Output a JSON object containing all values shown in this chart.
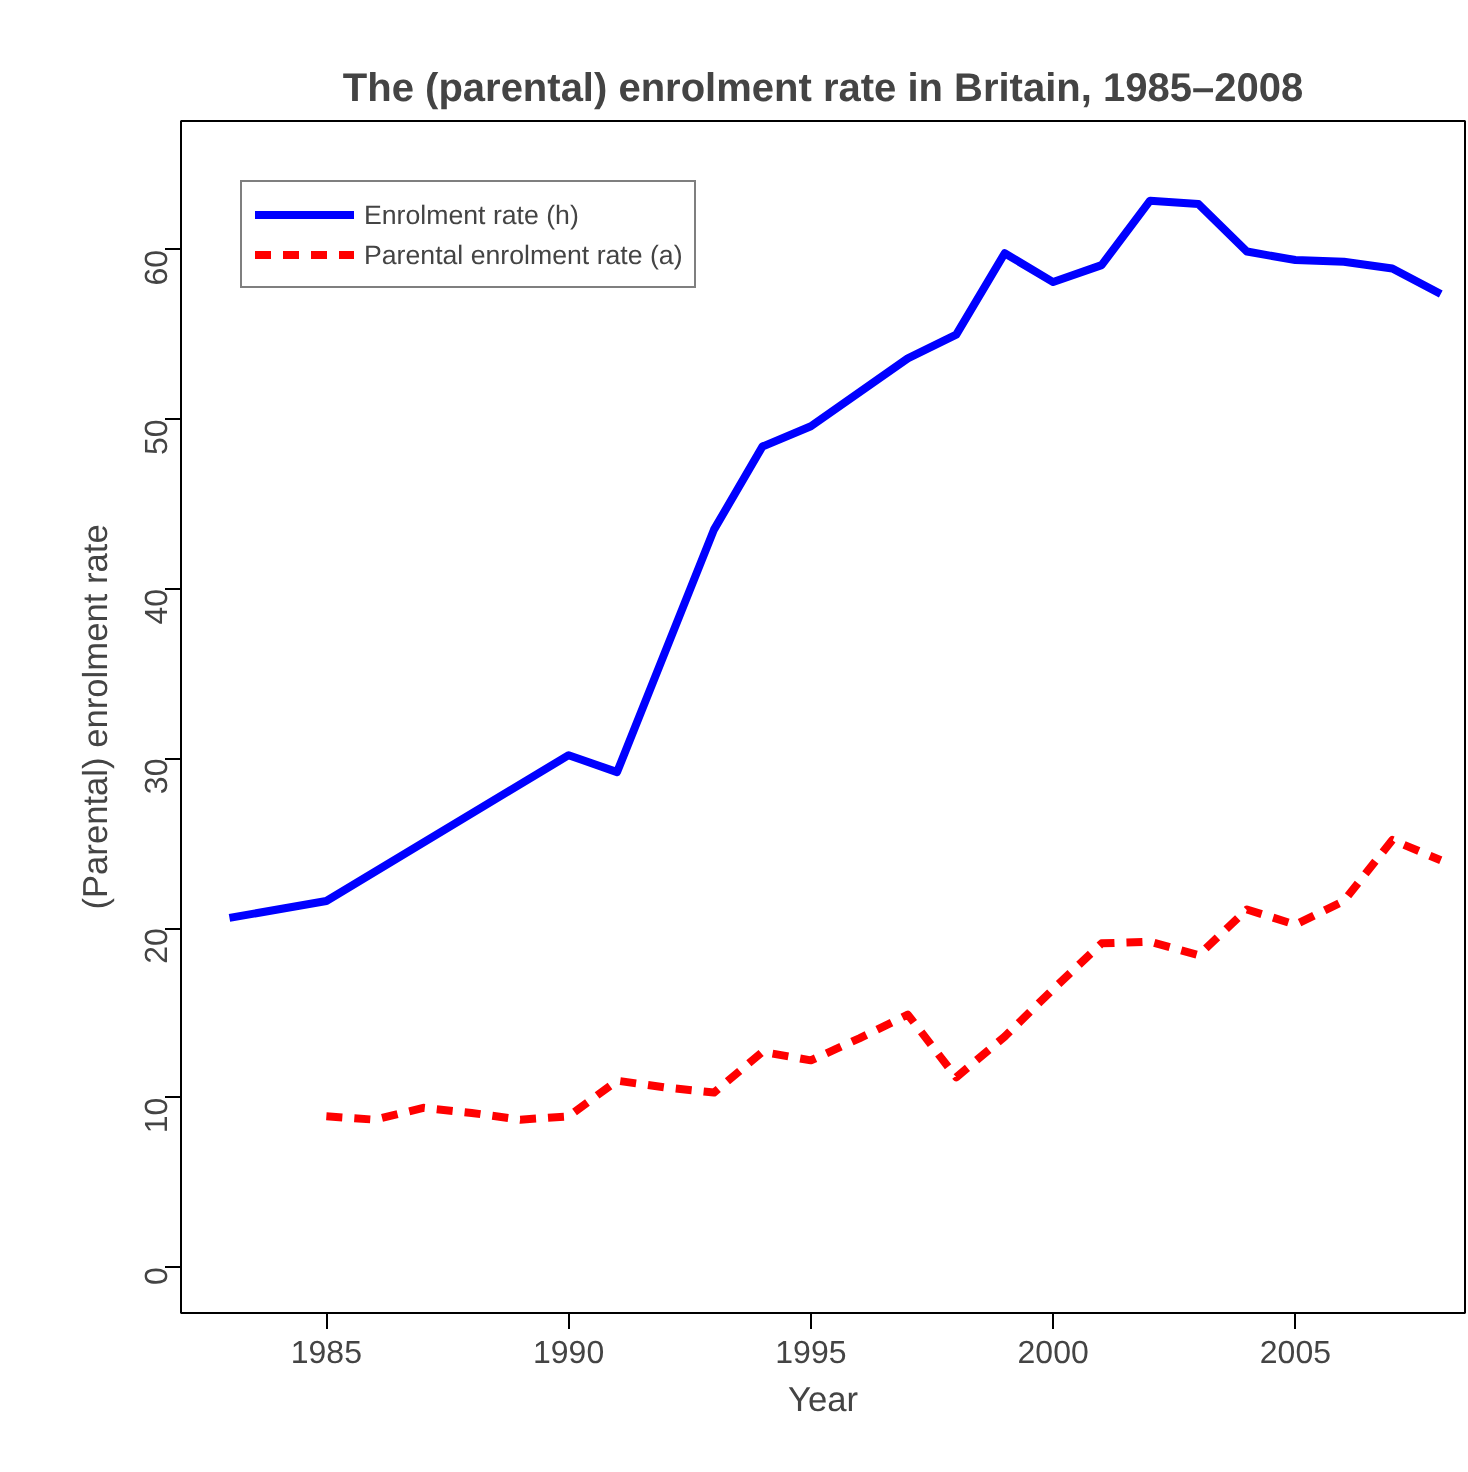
{
  "chart_data": {
    "type": "line",
    "title": "The (parental) enrolment rate in Britain, 1985–2008",
    "xlabel": "Year",
    "ylabel": "(Parental) enrolment rate",
    "xlim": [
      1982,
      2008.5
    ],
    "ylim": [
      -2.7,
      67.6
    ],
    "xticks": [
      1985,
      1990,
      1995,
      2000,
      2005
    ],
    "yticks": [
      0,
      10,
      20,
      30,
      40,
      50,
      60
    ],
    "grid": false,
    "legend": "top left",
    "series": [
      {
        "name": "Enrolment rate (h)",
        "color": "#0000ff",
        "line_style": "solid",
        "x": [
          1983,
          1985,
          1990,
          1991,
          1993,
          1994,
          1995,
          1997,
          1998,
          1999,
          2000,
          2001,
          2002,
          2003,
          2004,
          2005,
          2006,
          2007,
          2008
        ],
        "values": [
          20.6,
          21.6,
          30.2,
          29.2,
          43.5,
          48.4,
          49.6,
          53.6,
          55.0,
          59.8,
          58.1,
          59.1,
          62.9,
          62.7,
          59.9,
          59.4,
          59.3,
          58.9,
          57.4
        ]
      },
      {
        "name": "Parental enrolment rate (a)",
        "color": "#ff0000",
        "line_style": "dashed",
        "x": [
          1985,
          1986,
          1987,
          1988,
          1989,
          1990,
          1991,
          1992,
          1993,
          1994,
          1995,
          1996,
          1997,
          1998,
          1999,
          2000,
          2001,
          2002,
          2003,
          2004,
          2005,
          2006,
          2007,
          2008
        ],
        "values": [
          8.9,
          8.7,
          9.4,
          9.1,
          8.7,
          8.9,
          11.0,
          10.6,
          10.3,
          12.7,
          12.2,
          13.5,
          14.9,
          11.2,
          13.6,
          16.4,
          19.1,
          19.2,
          18.4,
          21.1,
          20.2,
          21.6,
          25.2,
          24.0
        ]
      }
    ]
  }
}
